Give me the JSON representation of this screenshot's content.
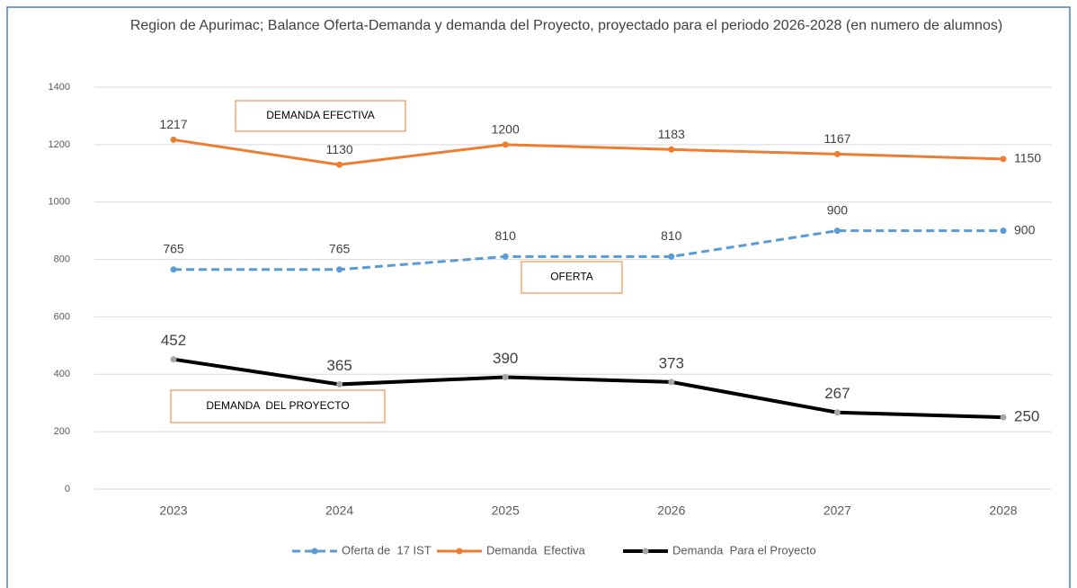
{
  "chart_data": {
    "type": "line",
    "title": "Region de Apurimac; Balance Oferta-Demanda y demanda del Proyecto, proyectado para el periodo 2026-2028 (en numero de alumnos)",
    "categories": [
      "2023",
      "2024",
      "2025",
      "2026",
      "2027",
      "2028"
    ],
    "series": [
      {
        "name": "Oferta de  17 IST",
        "color": "#5b9bd5",
        "dashed": true,
        "values": [
          765,
          765,
          810,
          810,
          900,
          900
        ]
      },
      {
        "name": "Demanda  Efectiva",
        "color": "#ed7d31",
        "dashed": false,
        "values": [
          1217,
          1130,
          1200,
          1183,
          1167,
          1150
        ]
      },
      {
        "name": "Demanda  Para el Proyecto",
        "color": "#000000",
        "marker_color": "#a5a5a5",
        "dashed": false,
        "values": [
          452,
          365,
          390,
          373,
          267,
          250
        ]
      }
    ],
    "annotations": [
      "DEMANDA EFECTIVA",
      "OFERTA",
      "DEMANDA  DEL PROYECTO"
    ],
    "ylim": [
      0,
      1400
    ],
    "yticks": [
      0,
      200,
      400,
      600,
      800,
      1000,
      1200,
      1400
    ],
    "grid": true,
    "legend": "bottom"
  }
}
